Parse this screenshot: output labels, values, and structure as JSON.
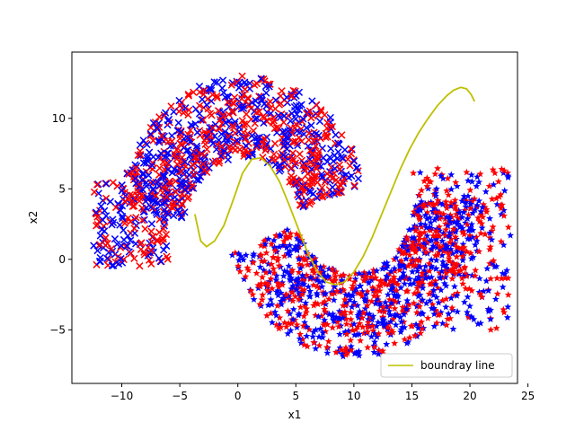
{
  "chart_data": {
    "type": "scatter",
    "xlabel": "x1",
    "ylabel": "x2",
    "xlim": [
      -14.3,
      24.1
    ],
    "ylim": [
      -8.8,
      14.7
    ],
    "xticks": [
      -10,
      -5,
      0,
      5,
      10,
      15,
      20,
      25
    ],
    "yticks": [
      -5,
      0,
      5,
      10
    ],
    "grid": false,
    "legend_placement": "lower-right",
    "upper_moon": {
      "cx": 0.5,
      "cy": 2.0,
      "r_inner": 5.2,
      "r_outer": 11.0,
      "theta_deg": [
        18,
        170
      ]
    },
    "lower_moon": {
      "cx": 10.0,
      "cy": 4.2,
      "r_inner": 5.2,
      "r_outer": 11.2,
      "theta_deg": [
        200,
        360
      ]
    },
    "upper_left_cluster": {
      "x": [
        -12.5,
        -6
      ],
      "y": [
        -0.5,
        5.5
      ]
    },
    "lower_right_cluster": {
      "x": [
        15,
        23.5
      ],
      "y": [
        -5,
        6.5
      ]
    },
    "series": [
      {
        "name": "",
        "marker": "x",
        "color": "#ff0000",
        "count": 520
      },
      {
        "name": "",
        "marker": "x",
        "color": "#0000ff",
        "count": 520
      },
      {
        "name": "",
        "marker": "*",
        "color": "#ff0000",
        "count": 620
      },
      {
        "name": "",
        "marker": "*",
        "color": "#0000ff",
        "count": 620
      },
      {
        "name": "boundray line",
        "type": "line",
        "color": "#bfbf00",
        "x": [
          -3.7,
          -3.2,
          -2.7,
          -2.0,
          -1.2,
          -0.4,
          0.4,
          1.2,
          2.0,
          2.8,
          3.6,
          4.4,
          5.2,
          6.0,
          6.8,
          7.6,
          8.4,
          9.2,
          10.0,
          10.8,
          11.6,
          12.4,
          13.2,
          14.0,
          14.8,
          15.6,
          16.4,
          17.2,
          18.0,
          18.6,
          19.2,
          19.7,
          20.1,
          20.4
        ],
        "y": [
          3.2,
          1.3,
          0.9,
          1.3,
          2.4,
          4.2,
          6.1,
          7.1,
          7.2,
          6.6,
          5.5,
          3.9,
          2.2,
          0.5,
          -0.8,
          -1.6,
          -1.8,
          -1.6,
          -0.9,
          0.2,
          1.6,
          3.2,
          4.8,
          6.4,
          7.8,
          9.0,
          10.0,
          10.9,
          11.6,
          12.0,
          12.2,
          12.1,
          11.7,
          11.2
        ]
      }
    ]
  }
}
